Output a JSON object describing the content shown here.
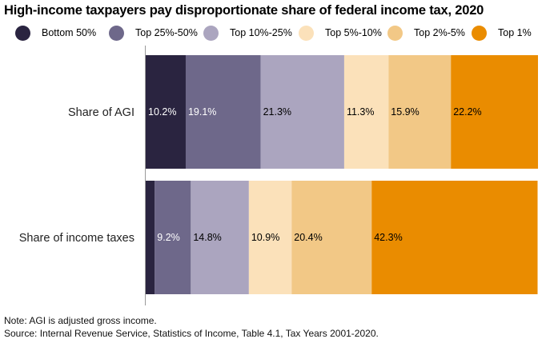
{
  "title": "High-income taxpayers pay disproportionate share of federal income tax, 2020",
  "note": "Note: AGI is adjusted gross income.",
  "source": "Source: Internal Revenue Service, Statistics of Income, Table 4.1, Tax Years 2001-2020.",
  "chart_data": {
    "type": "bar",
    "orientation": "horizontal",
    "stacked": true,
    "categories": [
      "Share of AGI",
      "Share of income taxes"
    ],
    "series": [
      {
        "name": "Bottom 50%",
        "color": "#2a2440",
        "label_color": "#ffffff",
        "values": [
          10.2,
          2.3
        ],
        "labels": [
          "10.2%",
          ""
        ]
      },
      {
        "name": "Top 25%-50%",
        "color": "#6e688a",
        "label_color": "#ffffff",
        "values": [
          19.1,
          9.2
        ],
        "labels": [
          "19.1%",
          "9.2%"
        ]
      },
      {
        "name": "Top 10%-25%",
        "color": "#aba5bf",
        "label_color": "#000000",
        "values": [
          21.3,
          14.8
        ],
        "labels": [
          "21.3%",
          "14.8%"
        ]
      },
      {
        "name": "Top 5%-10%",
        "color": "#fbe1ba",
        "label_color": "#000000",
        "values": [
          11.3,
          10.9
        ],
        "labels": [
          "11.3%",
          "10.9%"
        ]
      },
      {
        "name": "Top 2%-5%",
        "color": "#f2c886",
        "label_color": "#000000",
        "values": [
          15.9,
          20.4
        ],
        "labels": [
          "15.9%",
          "20.4%"
        ]
      },
      {
        "name": "Top 1%",
        "color": "#ea8c00",
        "label_color": "#000000",
        "values": [
          22.2,
          42.3
        ],
        "labels": [
          "22.2%",
          "42.3%"
        ]
      }
    ],
    "xlim": [
      0,
      100
    ],
    "legend_position": "top",
    "grid": false
  }
}
